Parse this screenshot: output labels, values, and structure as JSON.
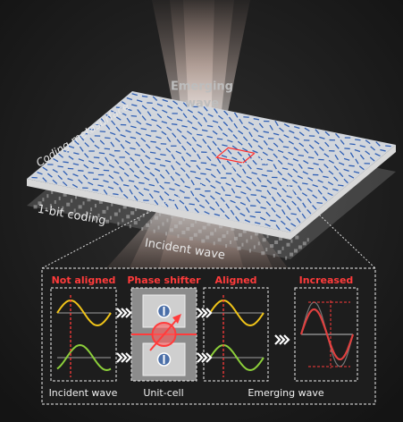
{
  "emerging_label": {
    "lines": [
      "Emerging",
      "wave"
    ]
  },
  "metasurface_label": "Coding metasurface",
  "coding_label": "1-bit coding",
  "incident_label": "Incident wave",
  "panel": {
    "stages": [
      "Not aligned",
      "Phase shifter",
      "Aligned",
      "Increased"
    ],
    "captions": [
      "Incident wave",
      "Unit-cell",
      "Emerging wave"
    ]
  }
}
